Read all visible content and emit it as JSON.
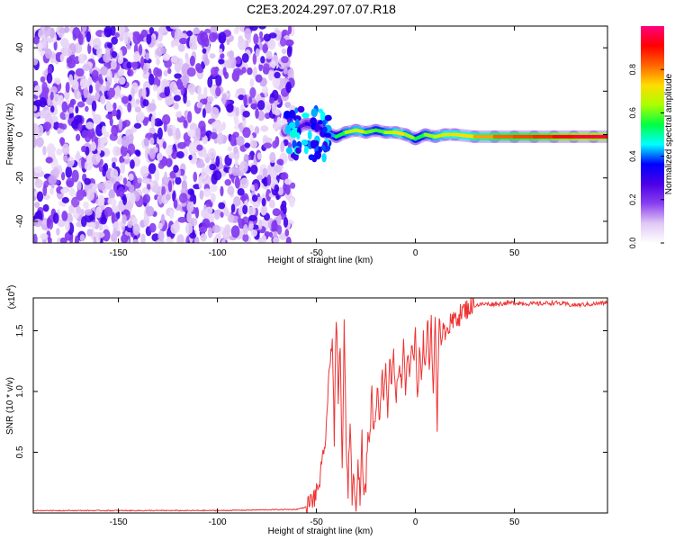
{
  "title": "C2E3.2024.297.07.07.R18",
  "chart_data": [
    {
      "type": "heatmap",
      "xlabel": "Height of straight line (km)",
      "ylabel": "Frequency (Hz)",
      "xlim": [
        -193,
        97
      ],
      "ylim": [
        -50,
        50
      ],
      "xticks": [
        -150,
        -100,
        -50,
        0,
        50
      ],
      "yticks": [
        -40,
        -20,
        0,
        20,
        40
      ],
      "colorbar": {
        "label": "Normalized spectral amplitude",
        "range": [
          0,
          1
        ],
        "ticks": [
          "0.0",
          "0.2",
          "0.4",
          "0.6",
          "0.8"
        ],
        "colors": [
          "#ffffff",
          "#e0c8f4",
          "#8a3ff0",
          "#4a00e6",
          "#0000ff",
          "#00ffff",
          "#00ff44",
          "#aaff00",
          "#ffdd00",
          "#ff6600",
          "#ff0000",
          "#ff0080"
        ]
      },
      "noise_region": {
        "x_from": -193,
        "x_to": -62,
        "description_free": true
      },
      "signal_track": {
        "x": [
          -65,
          -60,
          -55,
          -50,
          -45,
          -40,
          -35,
          -30,
          -25,
          -20,
          -15,
          -10,
          -5,
          0,
          5,
          10,
          15,
          20,
          30,
          40,
          50,
          60,
          70,
          80,
          90,
          97
        ],
        "y": [
          2,
          3,
          5,
          4,
          1,
          -1,
          1,
          2,
          1,
          2,
          1,
          1,
          0,
          -2,
          0,
          -1,
          0,
          0,
          -1,
          -1,
          -1,
          -1,
          -1,
          -1,
          -1,
          -1
        ],
        "amplitude": [
          0.15,
          0.2,
          0.3,
          0.3,
          0.35,
          0.5,
          0.6,
          0.7,
          0.65,
          0.55,
          0.6,
          0.7,
          0.75,
          0.5,
          0.6,
          0.65,
          0.7,
          0.7,
          0.75,
          0.8,
          0.85,
          0.85,
          0.9,
          0.95,
          0.95,
          0.95
        ]
      }
    },
    {
      "type": "line",
      "xlabel": "Height of straight line (km)",
      "ylabel": "SNR (10 * v/v)",
      "multiplier_label": "(x10",
      "multiplier_exp": "4",
      "xlim": [
        -193,
        97
      ],
      "ylim": [
        0,
        1.77
      ],
      "xticks": [
        -150,
        -100,
        -50,
        0,
        50
      ],
      "yticks": [
        "0.5",
        "1.0",
        "1.5"
      ],
      "color": "#ee3333",
      "series": [
        {
          "x": [
            -193,
            -150,
            -100,
            -60,
            -55,
            -50,
            -48,
            -46,
            -44,
            -42,
            -41,
            -40,
            -39,
            -38,
            -37,
            -36,
            -35,
            -34,
            -33,
            -32,
            -31,
            -30,
            -29,
            -28,
            -27,
            -26,
            -25,
            -24,
            -23,
            -22,
            -21,
            -20,
            -19,
            -18,
            -17,
            -16,
            -15,
            -14,
            -13,
            -12,
            -11,
            -10,
            -9,
            -8,
            -7,
            -6,
            -5,
            -4,
            -3,
            -2,
            -1,
            0,
            1,
            2,
            3,
            4,
            5,
            6,
            7,
            8,
            9,
            10,
            11,
            12,
            13,
            14,
            15,
            16,
            17,
            18,
            19,
            20,
            22,
            24,
            26,
            28,
            30,
            35,
            40,
            50,
            60,
            70,
            80,
            90,
            97
          ],
          "y": [
            0.02,
            0.02,
            0.02,
            0.03,
            0.05,
            0.15,
            0.3,
            0.5,
            1.0,
            1.5,
            0.6,
            1.65,
            0.9,
            1.4,
            0.3,
            1.6,
            0.5,
            0.2,
            0.8,
            0.15,
            0.3,
            0.1,
            0.4,
            0.15,
            0.6,
            0.1,
            0.25,
            0.7,
            0.6,
            1.05,
            0.65,
            0.85,
            1.1,
            0.7,
            1.2,
            0.95,
            1.25,
            0.8,
            1.3,
            1.0,
            1.4,
            0.9,
            1.05,
            1.3,
            0.95,
            1.45,
            1.0,
            1.3,
            1.1,
            1.35,
            1.2,
            1.6,
            0.9,
            1.3,
            1.1,
            1.5,
            1.15,
            1.65,
            1.2,
            1.55,
            0.95,
            1.7,
            0.7,
            1.6,
            1.3,
            1.65,
            1.45,
            1.6,
            1.5,
            1.58,
            1.55,
            1.62,
            1.62,
            1.66,
            1.68,
            1.7,
            1.71,
            1.72,
            1.72,
            1.73,
            1.72,
            1.73,
            1.71,
            1.72,
            1.73
          ]
        }
      ]
    }
  ]
}
